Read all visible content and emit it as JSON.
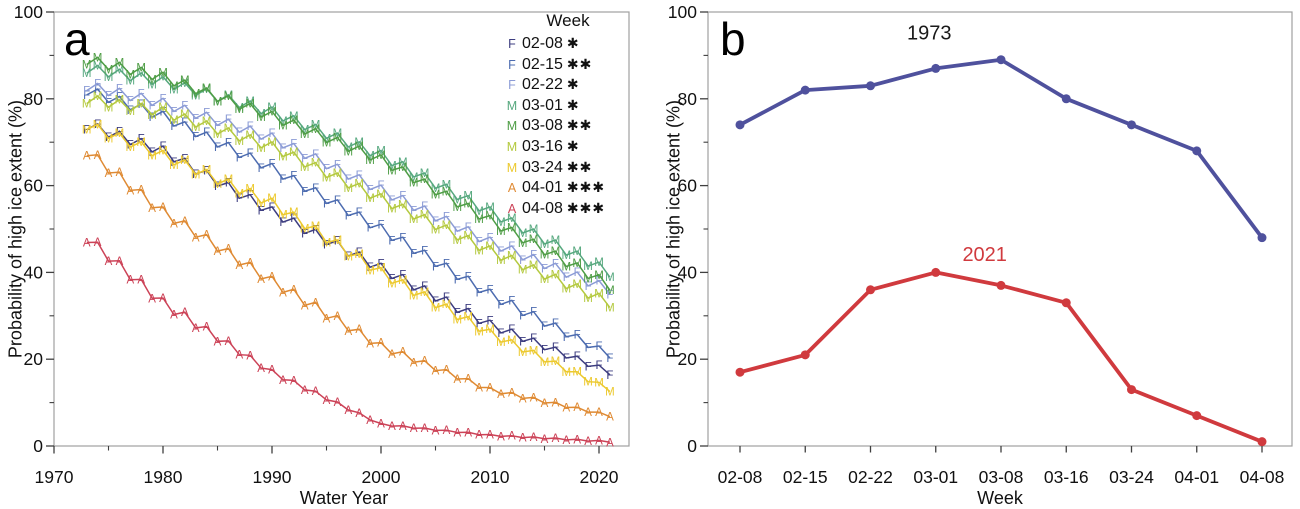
{
  "figure": {
    "background": "#ffffff",
    "frame_color": "#a0a0a0",
    "tick_color": "#3f3f3f",
    "text_color": "#111111",
    "panel_a": {
      "letter": "a",
      "y_axis": {
        "title": "Probability of high ice extent (%)",
        "range": [
          0,
          100
        ],
        "major_ticks": [
          0,
          20,
          40,
          60,
          80,
          100
        ],
        "minor_ticks": [
          10,
          30,
          50,
          70,
          90
        ]
      },
      "x_axis": {
        "title": "Water Year",
        "range": [
          1970,
          2023
        ],
        "major_ticks": [
          1970,
          1980,
          1990,
          2000,
          2010,
          2020
        ],
        "minor_ticks": [
          1975,
          1985,
          1995,
          2005,
          2015
        ]
      },
      "legend": {
        "title": "Week",
        "items": [
          {
            "marker": "F",
            "label": "02-08",
            "stars": "✱",
            "color": "#3d3d80"
          },
          {
            "marker": "F",
            "label": "02-15",
            "stars": "✱✱",
            "color": "#4d6cb0"
          },
          {
            "marker": "F",
            "label": "02-22",
            "stars": "✱",
            "color": "#8c9cd6"
          },
          {
            "marker": "M",
            "label": "03-01",
            "stars": "✱",
            "color": "#56a87e"
          },
          {
            "marker": "M",
            "label": "03-08",
            "stars": "✱✱",
            "color": "#4e9d45"
          },
          {
            "marker": "M",
            "label": "03-16",
            "stars": "✱",
            "color": "#b4c93f"
          },
          {
            "marker": "M",
            "label": "03-24",
            "stars": "✱✱",
            "color": "#ecc92e"
          },
          {
            "marker": "A",
            "label": "04-01",
            "stars": "✱✱✱",
            "color": "#df8a33"
          },
          {
            "marker": "A",
            "label": "04-08",
            "stars": "✱✱✱",
            "color": "#cc4257"
          }
        ]
      },
      "chart_data": {
        "type": "line",
        "title": "",
        "xlabel": "Water Year",
        "ylabel": "Probability of high ice extent (%)",
        "x_range": [
          1973,
          2021
        ],
        "ylim": [
          0,
          100
        ],
        "marker_note": "letter markers per year (F=February, M=March, A=April weeks); lines zigzag slightly year to year",
        "series": [
          {
            "week": "02-08",
            "marker": "F",
            "color": "#3d3d80",
            "anchors": [
              [
                1973,
                74
              ],
              [
                1980,
                68
              ],
              [
                1990,
                54
              ],
              [
                2000,
                41
              ],
              [
                2010,
                28
              ],
              [
                2021,
                17
              ]
            ]
          },
          {
            "week": "02-15",
            "marker": "F",
            "color": "#4d6cb0",
            "anchors": [
              [
                1973,
                82
              ],
              [
                1980,
                76
              ],
              [
                1990,
                64
              ],
              [
                2000,
                50
              ],
              [
                2010,
                35
              ],
              [
                2021,
                21
              ]
            ]
          },
          {
            "week": "02-22",
            "marker": "F",
            "color": "#8c9cd6",
            "anchors": [
              [
                1973,
                83
              ],
              [
                1980,
                79
              ],
              [
                1990,
                71
              ],
              [
                2000,
                59
              ],
              [
                2010,
                47
              ],
              [
                2021,
                36
              ]
            ]
          },
          {
            "week": "03-01",
            "marker": "M",
            "color": "#56a87e",
            "anchors": [
              [
                1973,
                87
              ],
              [
                1980,
                84
              ],
              [
                1990,
                77
              ],
              [
                2000,
                67
              ],
              [
                2010,
                54
              ],
              [
                2021,
                40
              ]
            ]
          },
          {
            "week": "03-08",
            "marker": "M",
            "color": "#4e9d45",
            "anchors": [
              [
                1973,
                89
              ],
              [
                1980,
                85
              ],
              [
                1990,
                76
              ],
              [
                2000,
                66
              ],
              [
                2010,
                52
              ],
              [
                2021,
                37
              ]
            ]
          },
          {
            "week": "03-16",
            "marker": "M",
            "color": "#b4c93f",
            "anchors": [
              [
                1973,
                80
              ],
              [
                1980,
                77
              ],
              [
                1990,
                69
              ],
              [
                2000,
                57
              ],
              [
                2010,
                45
              ],
              [
                2021,
                33
              ]
            ]
          },
          {
            "week": "03-24",
            "marker": "M",
            "color": "#ecc92e",
            "anchors": [
              [
                1973,
                74
              ],
              [
                1980,
                67
              ],
              [
                1990,
                56
              ],
              [
                2000,
                40
              ],
              [
                2010,
                26
              ],
              [
                2021,
                13
              ]
            ]
          },
          {
            "week": "04-01",
            "marker": "A",
            "color": "#df8a33",
            "anchors": [
              [
                1973,
                68
              ],
              [
                1980,
                54
              ],
              [
                1990,
                38
              ],
              [
                2000,
                23
              ],
              [
                2010,
                13
              ],
              [
                2021,
                7
              ]
            ]
          },
          {
            "week": "04-08",
            "marker": "A",
            "color": "#cc4257",
            "anchors": [
              [
                1973,
                48
              ],
              [
                1980,
                33
              ],
              [
                1990,
                17
              ],
              [
                2000,
                5
              ],
              [
                2010,
                2.5
              ],
              [
                2021,
                1
              ]
            ]
          }
        ]
      }
    },
    "panel_b": {
      "letter": "b",
      "y_axis": {
        "title": "Probability of high ice extent (%)",
        "range": [
          0,
          100
        ],
        "major_ticks": [
          0,
          20,
          40,
          60,
          80,
          100
        ],
        "minor_ticks": [
          10,
          30,
          50,
          70,
          90
        ]
      },
      "x_axis": {
        "title": "Week"
      },
      "chart_data": {
        "type": "line",
        "title": "",
        "xlabel": "Week",
        "ylabel": "Probability of high ice extent (%)",
        "ylim": [
          0,
          100
        ],
        "categories": [
          "02-08",
          "02-15",
          "02-22",
          "03-01",
          "03-08",
          "03-16",
          "03-24",
          "04-01",
          "04-08"
        ],
        "series": [
          {
            "name": "1973",
            "color": "#4f519d",
            "values": [
              74,
              82,
              83,
              87,
              89,
              80,
              74,
              68,
              48
            ]
          },
          {
            "name": "2021",
            "color": "#d03a3e",
            "values": [
              17,
              21,
              36,
              40,
              37,
              33,
              13,
              7,
              1
            ]
          }
        ],
        "annotations": [
          {
            "text": "1973",
            "color": "#1a1a1a",
            "x_index": 2.9,
            "y": 95
          },
          {
            "text": "2021",
            "color": "#d03a3e",
            "x_index": 3.75,
            "y": 44
          }
        ],
        "legend_position": "none"
      }
    }
  }
}
